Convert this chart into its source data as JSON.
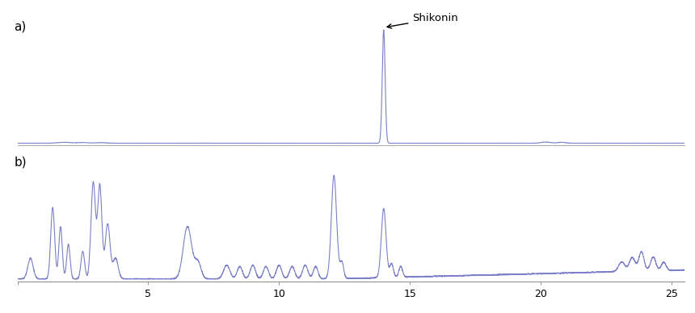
{
  "line_color": "#7b80c8",
  "background_color": "#ffffff",
  "x_min": 0,
  "x_max": 25.5,
  "x_ticks": [
    0,
    5,
    10,
    15,
    20,
    25
  ],
  "label_a": "a)",
  "label_b": "b)",
  "annotation_text": "Shikonin",
  "figsize": [
    8.6,
    3.88
  ],
  "dpi": 100
}
